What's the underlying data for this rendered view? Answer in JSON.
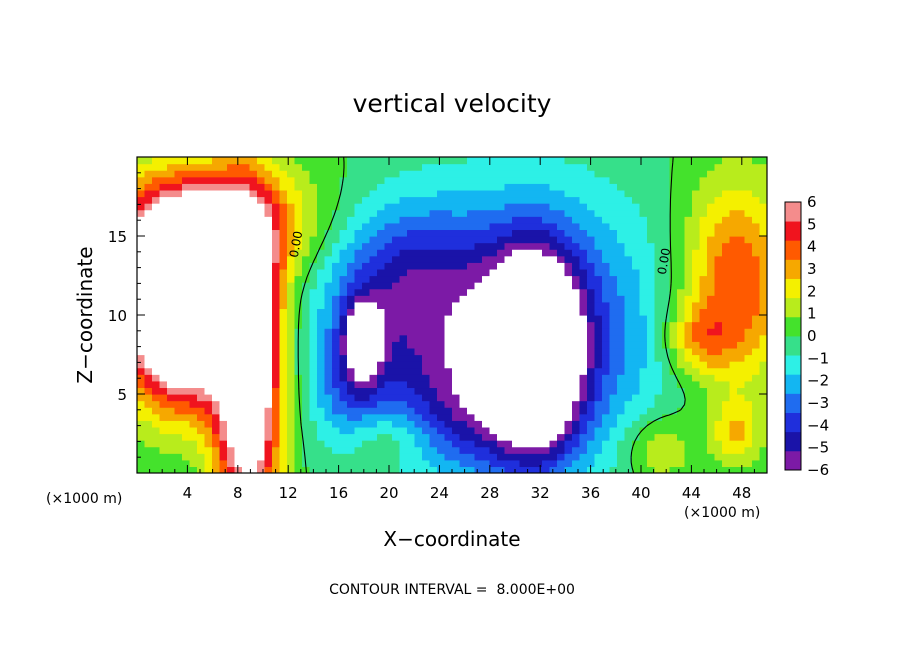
{
  "chart_data": {
    "type": "heatmap",
    "title": "vertical velocity",
    "xlabel": "X−coordinate",
    "ylabel": "Z−coordinate",
    "x_unit_note_left": "(×1000 m)",
    "x_unit_note_right": "(×1000 m)",
    "xlim": [
      0,
      50
    ],
    "ylim": [
      0,
      20
    ],
    "x_ticks": [
      4,
      8,
      12,
      16,
      20,
      24,
      28,
      32,
      36,
      40,
      44,
      48
    ],
    "x_tick_labels": [
      "4",
      "8",
      "12",
      "16",
      "20",
      "24",
      "28",
      "32",
      "36",
      "40",
      "44",
      "48"
    ],
    "y_ticks": [
      5,
      10,
      15
    ],
    "y_tick_labels": [
      "5",
      "10",
      "15"
    ],
    "colorbar": {
      "min": -6,
      "max": 6,
      "tick_labels": [
        "6",
        "5",
        "4",
        "3",
        "2",
        "1",
        "0",
        "−1",
        "−2",
        "−3",
        "−4",
        "−5",
        "−6"
      ],
      "colormap": [
        "#7c1aa6",
        "#1a13a8",
        "#1f2fdc",
        "#1f6cf0",
        "#13b6f2",
        "#2df0e6",
        "#36e08a",
        "#44e22c",
        "#b8ec1c",
        "#f4f000",
        "#f6a800",
        "#ff5a00",
        "#f0141e",
        "#f48c8c"
      ],
      "over_color": "#ffffff",
      "under_color": "#ffffff"
    },
    "contour_label": "0.00",
    "footer": "CONTOUR INTERVAL =  8.000E+00",
    "features": [
      {
        "x": 3.5,
        "z": 10.5,
        "sx": 3.2,
        "sz": 4.0,
        "w": 13.0
      },
      {
        "x": 8.8,
        "z": 6.0,
        "sx": 1.8,
        "sz": 7.0,
        "w": 9.0
      },
      {
        "x": 6.0,
        "z": 15.5,
        "sx": 6.0,
        "sz": 2.8,
        "w": 5.0
      },
      {
        "x": 47.5,
        "z": 12.0,
        "sx": 3.0,
        "sz": 4.5,
        "w": 4.5
      },
      {
        "x": 44.5,
        "z": 8.5,
        "sx": 1.8,
        "sz": 1.6,
        "w": 2.5
      },
      {
        "x": 47.5,
        "z": 2.5,
        "sx": 1.4,
        "sz": 1.5,
        "w": 2.5
      },
      {
        "x": 41.5,
        "z": 1.5,
        "sx": 2.0,
        "sz": 1.6,
        "w": 2.0
      },
      {
        "x": 19.5,
        "z": 2.2,
        "sx": 2.5,
        "sz": 1.4,
        "w": 1.5
      },
      {
        "x": 31.5,
        "z": 7.5,
        "sx": 2.5,
        "sz": 4.2,
        "w": -10.0
      },
      {
        "x": 32.0,
        "z": 9.0,
        "sx": 7.0,
        "sz": 6.0,
        "w": -4.0
      },
      {
        "x": 22.0,
        "z": 9.0,
        "sx": 5.0,
        "sz": 5.0,
        "w": -3.0
      },
      {
        "x": 18.0,
        "z": 8.5,
        "sx": 1.0,
        "sz": 1.6,
        "w": -5.5
      },
      {
        "x": 17.0,
        "z": 5.5,
        "sx": 2.0,
        "sz": 2.8,
        "w": -2.5
      },
      {
        "x": 20.0,
        "z": 13.0,
        "sx": 5.0,
        "sz": 3.0,
        "w": -2.0
      },
      {
        "x": 26.0,
        "z": 4.0,
        "sx": 3.0,
        "sz": 2.8,
        "w": -2.0
      }
    ]
  }
}
